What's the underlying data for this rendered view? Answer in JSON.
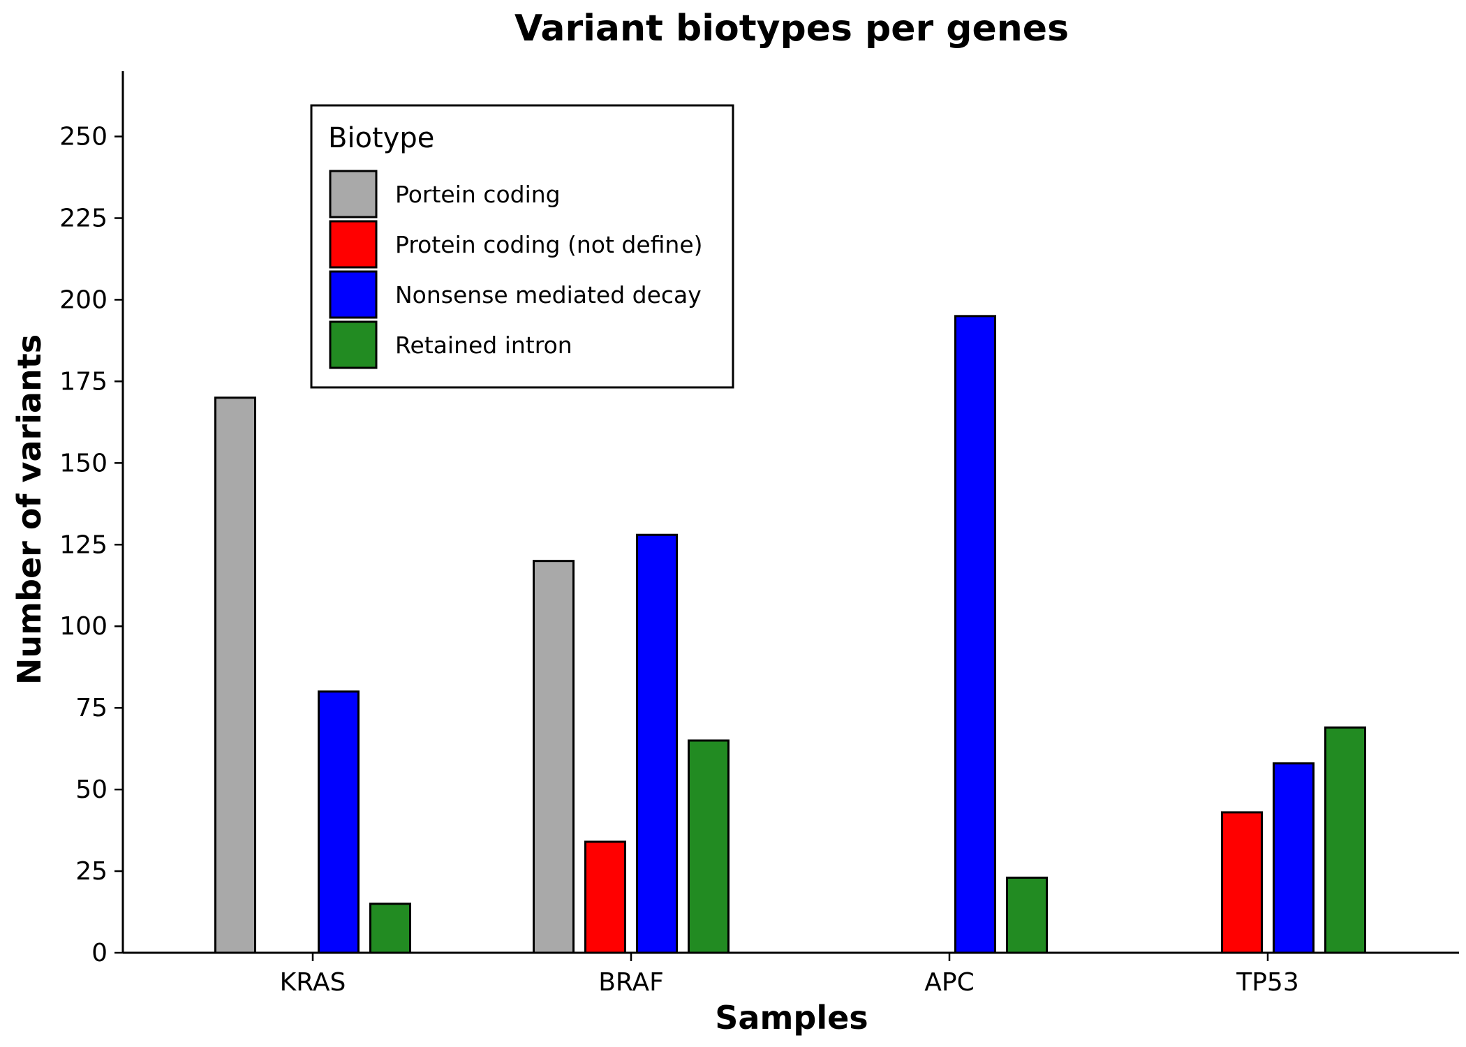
{
  "chart_data": {
    "type": "bar",
    "title": "Variant biotypes per genes",
    "xlabel": "Samples",
    "ylabel": "Number of variants",
    "categories": [
      "KRAS",
      "BRAF",
      "APC",
      "TP53"
    ],
    "ylim": [
      0,
      270
    ],
    "yticks": [
      0,
      25,
      50,
      75,
      100,
      125,
      150,
      175,
      200,
      225,
      250
    ],
    "grid": false,
    "legend": {
      "title": "Biotype",
      "placement": "top-left"
    },
    "series": [
      {
        "name": "Portein coding",
        "color": "#a9a9a9",
        "values": [
          170,
          120,
          0,
          0
        ]
      },
      {
        "name": "Protein coding (not define)",
        "color": "#ff0000",
        "values": [
          0,
          34,
          0,
          43
        ]
      },
      {
        "name": "Nonsense mediated decay",
        "color": "#0000ff",
        "values": [
          80,
          128,
          195,
          58
        ]
      },
      {
        "name": "Retained intron",
        "color": "#228b22",
        "values": [
          15,
          65,
          23,
          69
        ]
      }
    ]
  }
}
